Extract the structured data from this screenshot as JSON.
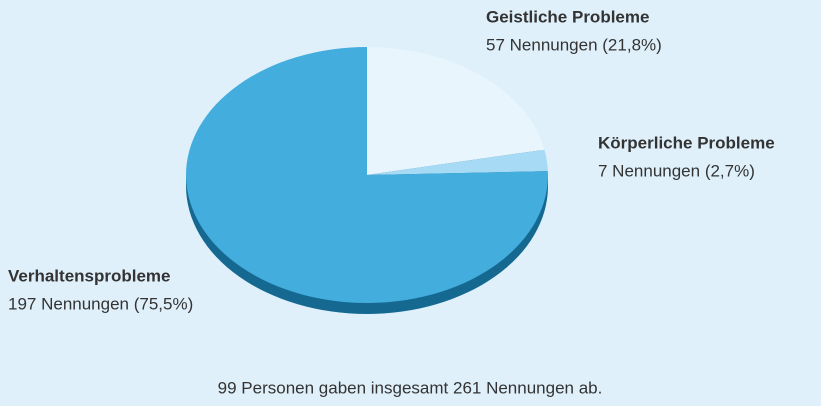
{
  "chart_data": {
    "type": "pie",
    "categories": [
      "Geistliche Probleme",
      "Körperliche Probleme",
      "Verhaltensprobleme"
    ],
    "values": [
      57,
      7,
      197
    ],
    "value_labels": [
      "57 Nennungen (21,8%)",
      "7 Nennungen (2,7%)",
      "197 Nennungen (75,5%)"
    ],
    "colors": [
      "#e9f5fd",
      "#a7dbf5",
      "#43addd"
    ],
    "note": "99 Personen gaben insgesamt 261 Nennungen ab."
  }
}
